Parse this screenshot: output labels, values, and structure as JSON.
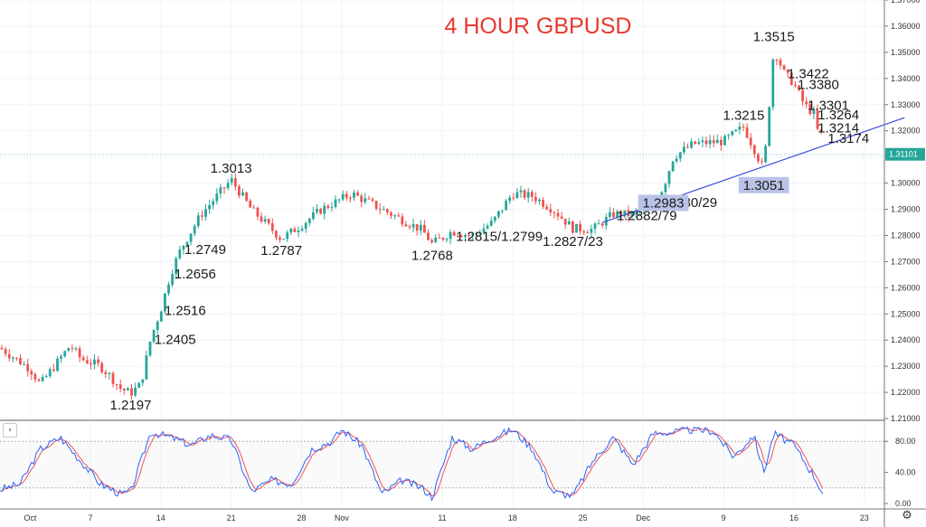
{
  "chart_data": [
    {
      "type": "candlestick",
      "title": "4 HOUR GBPUSD",
      "symbol": "GBPUSD",
      "timeframe": "4H",
      "ylim": [
        1.21,
        1.37
      ],
      "y_ticks": [
        "1.21000",
        "1.22000",
        "1.23000",
        "1.24000",
        "1.25000",
        "1.26000",
        "1.27000",
        "1.28000",
        "1.29000",
        "1.30000",
        "1.31000",
        "1.32000",
        "1.33000",
        "1.34000",
        "1.35000",
        "1.36000",
        "1.37000"
      ],
      "x_ticks": [
        "Oct",
        "7",
        "14",
        "21",
        "28",
        "Nov",
        "11",
        "18",
        "25",
        "Dec",
        "9",
        "16",
        "23"
      ],
      "last_price": "1.31101",
      "bull_color": "#26a69a",
      "bear_color": "#ef5350",
      "price_path": [
        [
          "2020-09-28",
          1.237
        ],
        [
          "2020-10-01",
          1.229
        ],
        [
          "2020-10-02",
          1.223
        ],
        [
          "2020-10-05",
          1.238
        ],
        [
          "2020-10-06",
          1.233
        ],
        [
          "2020-10-08",
          1.23
        ],
        [
          "2020-10-09",
          1.226
        ],
        [
          "2020-10-10",
          1.2215
        ],
        [
          "2020-10-11",
          1.2197
        ],
        [
          "2020-10-12",
          1.223
        ],
        [
          "2020-10-13",
          1.2405
        ],
        [
          "2020-10-14",
          1.2516
        ],
        [
          "2020-10-15",
          1.2656
        ],
        [
          "2020-10-16",
          1.2749
        ],
        [
          "2020-10-18",
          1.288
        ],
        [
          "2020-10-21",
          1.3013
        ],
        [
          "2020-10-23",
          1.29
        ],
        [
          "2020-10-26",
          1.2787
        ],
        [
          "2020-10-28",
          1.284
        ],
        [
          "2020-10-30",
          1.29
        ],
        [
          "2020-11-02",
          1.296
        ],
        [
          "2020-11-04",
          1.292
        ],
        [
          "2020-11-06",
          1.288
        ],
        [
          "2020-11-09",
          1.282
        ],
        [
          "2020-11-10",
          1.2768
        ],
        [
          "2020-11-12",
          1.2815
        ],
        [
          "2020-11-14",
          1.2799
        ],
        [
          "2020-11-16",
          1.285
        ],
        [
          "2020-11-18",
          1.296
        ],
        [
          "2020-11-20",
          1.295
        ],
        [
          "2020-11-22",
          1.29
        ],
        [
          "2020-11-24",
          1.2827
        ],
        [
          "2020-11-26",
          1.2823
        ],
        [
          "2020-11-28",
          1.2882
        ],
        [
          "2020-11-30",
          1.2879
        ],
        [
          "2020-12-02",
          1.293
        ],
        [
          "2020-12-03",
          1.2983
        ],
        [
          "2020-12-04",
          1.31
        ],
        [
          "2020-12-06",
          1.315
        ],
        [
          "2020-12-09",
          1.316
        ],
        [
          "2020-12-11",
          1.3215
        ],
        [
          "2020-12-13",
          1.3051
        ],
        [
          "2020-12-14",
          1.3515
        ],
        [
          "2020-12-15",
          1.3422
        ],
        [
          "2020-12-16",
          1.338
        ],
        [
          "2020-12-17",
          1.3301
        ],
        [
          "2020-12-18",
          1.3264
        ],
        [
          "2020-12-18",
          1.3214
        ],
        [
          "2020-12-19",
          1.3174
        ],
        [
          "2020-12-19",
          1.311
        ]
      ],
      "annotations": [
        {
          "text": "1.2197",
          "x": "2020-10-11",
          "y": 1.2197,
          "pos": "below"
        },
        {
          "text": "1.2405",
          "x": "2020-10-13",
          "y": 1.2405,
          "pos": "right"
        },
        {
          "text": "1.2516",
          "x": "2020-10-14",
          "y": 1.2516,
          "pos": "right"
        },
        {
          "text": "1.2656",
          "x": "2020-10-15",
          "y": 1.2656,
          "pos": "right"
        },
        {
          "text": "1.2749",
          "x": "2020-10-16",
          "y": 1.2749,
          "pos": "right"
        },
        {
          "text": "1.3013",
          "x": "2020-10-21",
          "y": 1.3013,
          "pos": "above"
        },
        {
          "text": "1.2787",
          "x": "2020-10-26",
          "y": 1.2787,
          "pos": "below"
        },
        {
          "text": "1.2768",
          "x": "2020-11-10",
          "y": 1.2768,
          "pos": "below"
        },
        {
          "text": "1.2815/1.2799",
          "x": "2020-11-12",
          "y": 1.28,
          "pos": "right"
        },
        {
          "text": "1.2827/23",
          "x": "2020-11-24",
          "y": 1.2823,
          "pos": "below"
        },
        {
          "text": "1.2882/79",
          "x": "2020-11-28",
          "y": 1.2879,
          "pos": "right"
        },
        {
          "text": "1.2930/29",
          "x": "2020-12-02",
          "y": 1.2929,
          "pos": "right"
        },
        {
          "text": "1.2983",
          "x": "2020-12-03",
          "y": 1.2983,
          "pos": "box"
        },
        {
          "text": "1.3215",
          "x": "2020-12-11",
          "y": 1.3215,
          "pos": "above"
        },
        {
          "text": "1.3051",
          "x": "2020-12-13",
          "y": 1.3051,
          "pos": "box"
        },
        {
          "text": "1.3515",
          "x": "2020-12-14",
          "y": 1.3515,
          "pos": "above"
        },
        {
          "text": "1.3422",
          "x": "2020-12-15",
          "y": 1.3422,
          "pos": "right"
        },
        {
          "text": "1.3380",
          "x": "2020-12-16",
          "y": 1.338,
          "pos": "right"
        },
        {
          "text": "1.3301",
          "x": "2020-12-17",
          "y": 1.3301,
          "pos": "right"
        },
        {
          "text": "1.3264",
          "x": "2020-12-18",
          "y": 1.3264,
          "pos": "right"
        },
        {
          "text": "1.3214",
          "x": "2020-12-18",
          "y": 1.3214,
          "pos": "right"
        },
        {
          "text": "1.3174",
          "x": "2020-12-19",
          "y": 1.3174,
          "pos": "right"
        }
      ],
      "trendline": {
        "from": [
          "2020-11-27",
          1.285
        ],
        "to": [
          "2020-12-27",
          1.325
        ],
        "color": "#3b4bd8"
      },
      "highlight_color": "#b9c3e8"
    },
    {
      "type": "line",
      "indicator": "stochastic",
      "ylim": [
        0,
        100
      ],
      "y_ticks": [
        "0.00",
        "40.00",
        "80.00"
      ],
      "levels": [
        20,
        80
      ],
      "k_color": "#2962ff",
      "d_color": "#ef5350",
      "k_path": [
        [
          "2020-09-28",
          18
        ],
        [
          "2020-09-30",
          25
        ],
        [
          "2020-10-02",
          70
        ],
        [
          "2020-10-04",
          85
        ],
        [
          "2020-10-06",
          55
        ],
        [
          "2020-10-08",
          25
        ],
        [
          "2020-10-10",
          12
        ],
        [
          "2020-10-11",
          15
        ],
        [
          "2020-10-13",
          92
        ],
        [
          "2020-10-15",
          85
        ],
        [
          "2020-10-17",
          75
        ],
        [
          "2020-10-19",
          88
        ],
        [
          "2020-10-21",
          82
        ],
        [
          "2020-10-23",
          15
        ],
        [
          "2020-10-25",
          30
        ],
        [
          "2020-10-27",
          25
        ],
        [
          "2020-10-29",
          70
        ],
        [
          "2020-10-31",
          80
        ],
        [
          "2020-11-01",
          95
        ],
        [
          "2020-11-03",
          75
        ],
        [
          "2020-11-05",
          12
        ],
        [
          "2020-11-07",
          30
        ],
        [
          "2020-11-09",
          20
        ],
        [
          "2020-11-10",
          8
        ],
        [
          "2020-11-12",
          85
        ],
        [
          "2020-11-14",
          70
        ],
        [
          "2020-11-16",
          85
        ],
        [
          "2020-11-18",
          95
        ],
        [
          "2020-11-20",
          70
        ],
        [
          "2020-11-22",
          15
        ],
        [
          "2020-11-24",
          10
        ],
        [
          "2020-11-26",
          55
        ],
        [
          "2020-11-28",
          85
        ],
        [
          "2020-11-30",
          50
        ],
        [
          "2020-12-02",
          90
        ],
        [
          "2020-12-04",
          92
        ],
        [
          "2020-12-06",
          95
        ],
        [
          "2020-12-08",
          93
        ],
        [
          "2020-12-10",
          60
        ],
        [
          "2020-12-12",
          88
        ],
        [
          "2020-12-13",
          40
        ],
        [
          "2020-12-14",
          90
        ],
        [
          "2020-12-16",
          75
        ],
        [
          "2020-12-18",
          35
        ],
        [
          "2020-12-19",
          10
        ]
      ]
    }
  ]
}
